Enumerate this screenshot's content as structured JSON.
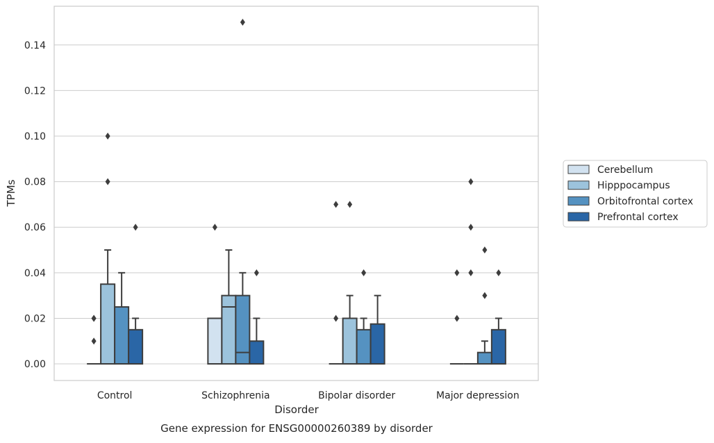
{
  "chart_data": {
    "type": "box",
    "title": "Gene expression for ENSG00000260389 by disorder",
    "xlabel": "Disorder",
    "ylabel": "TPMs",
    "ylim": [
      -0.0073,
      0.157
    ],
    "yticks": [
      0.0,
      0.02,
      0.04,
      0.06,
      0.08,
      0.1,
      0.12,
      0.14
    ],
    "ytick_labels": [
      "0.00",
      "0.02",
      "0.04",
      "0.06",
      "0.08",
      "0.10",
      "0.12",
      "0.14"
    ],
    "categories": [
      "Control",
      "Schizophrenia",
      "Bipolar disorder",
      "Major depression"
    ],
    "grid": true,
    "legend_position": "right",
    "series": [
      {
        "name": "Cerebellum",
        "color": "#d2e2f0",
        "boxes": [
          {
            "q1": 0.0,
            "median": 0.0,
            "q3": 0.0,
            "whislo": 0.0,
            "whishi": 0.0,
            "fliers": [
              0.01,
              0.02,
              0.02
            ]
          },
          {
            "q1": 0.0,
            "median": 0.0,
            "q3": 0.02,
            "whislo": 0.0,
            "whishi": 0.02,
            "fliers": [
              0.06
            ]
          },
          {
            "q1": 0.0,
            "median": 0.0,
            "q3": 0.0,
            "whislo": 0.0,
            "whishi": 0.0,
            "fliers": [
              0.02,
              0.07
            ]
          },
          {
            "q1": 0.0,
            "median": 0.0,
            "q3": 0.0,
            "whislo": 0.0,
            "whishi": 0.0,
            "fliers": [
              0.02,
              0.04
            ]
          }
        ]
      },
      {
        "name": "Hipppocampus",
        "color": "#9cc3dc",
        "boxes": [
          {
            "q1": 0.0,
            "median": 0.0,
            "q3": 0.035,
            "whislo": 0.0,
            "whishi": 0.05,
            "fliers": [
              0.08,
              0.1
            ]
          },
          {
            "q1": 0.0,
            "median": 0.025,
            "q3": 0.03,
            "whislo": 0.0,
            "whishi": 0.05,
            "fliers": []
          },
          {
            "q1": 0.0,
            "median": 0.0,
            "q3": 0.02,
            "whislo": 0.0,
            "whishi": 0.03,
            "fliers": [
              0.07
            ]
          },
          {
            "q1": 0.0,
            "median": 0.0,
            "q3": 0.0,
            "whislo": 0.0,
            "whishi": 0.0,
            "fliers": [
              0.04,
              0.06,
              0.08
            ]
          }
        ]
      },
      {
        "name": "Orbitofrontal cortex",
        "color": "#5592c1",
        "boxes": [
          {
            "q1": 0.0,
            "median": 0.0,
            "q3": 0.025,
            "whislo": 0.0,
            "whishi": 0.04,
            "fliers": []
          },
          {
            "q1": 0.0,
            "median": 0.005,
            "q3": 0.03,
            "whislo": 0.0,
            "whishi": 0.04,
            "fliers": [
              0.15
            ]
          },
          {
            "q1": 0.0,
            "median": 0.0,
            "q3": 0.015,
            "whislo": 0.0,
            "whishi": 0.02,
            "fliers": [
              0.04
            ]
          },
          {
            "q1": 0.0,
            "median": 0.0,
            "q3": 0.005,
            "whislo": 0.0,
            "whishi": 0.01,
            "fliers": [
              0.03,
              0.05
            ]
          }
        ]
      },
      {
        "name": "Prefrontal cortex",
        "color": "#2a66a6",
        "boxes": [
          {
            "q1": 0.0,
            "median": 0.0,
            "q3": 0.015,
            "whislo": 0.0,
            "whishi": 0.02,
            "fliers": [
              0.06
            ]
          },
          {
            "q1": 0.0,
            "median": 0.0,
            "q3": 0.01,
            "whislo": 0.0,
            "whishi": 0.02,
            "fliers": [
              0.04
            ]
          },
          {
            "q1": 0.0,
            "median": 0.0,
            "q3": 0.0175,
            "whislo": 0.0,
            "whishi": 0.03,
            "fliers": []
          },
          {
            "q1": 0.0,
            "median": 0.0,
            "q3": 0.015,
            "whislo": 0.0,
            "whishi": 0.02,
            "fliers": [
              0.04
            ]
          }
        ]
      }
    ]
  }
}
